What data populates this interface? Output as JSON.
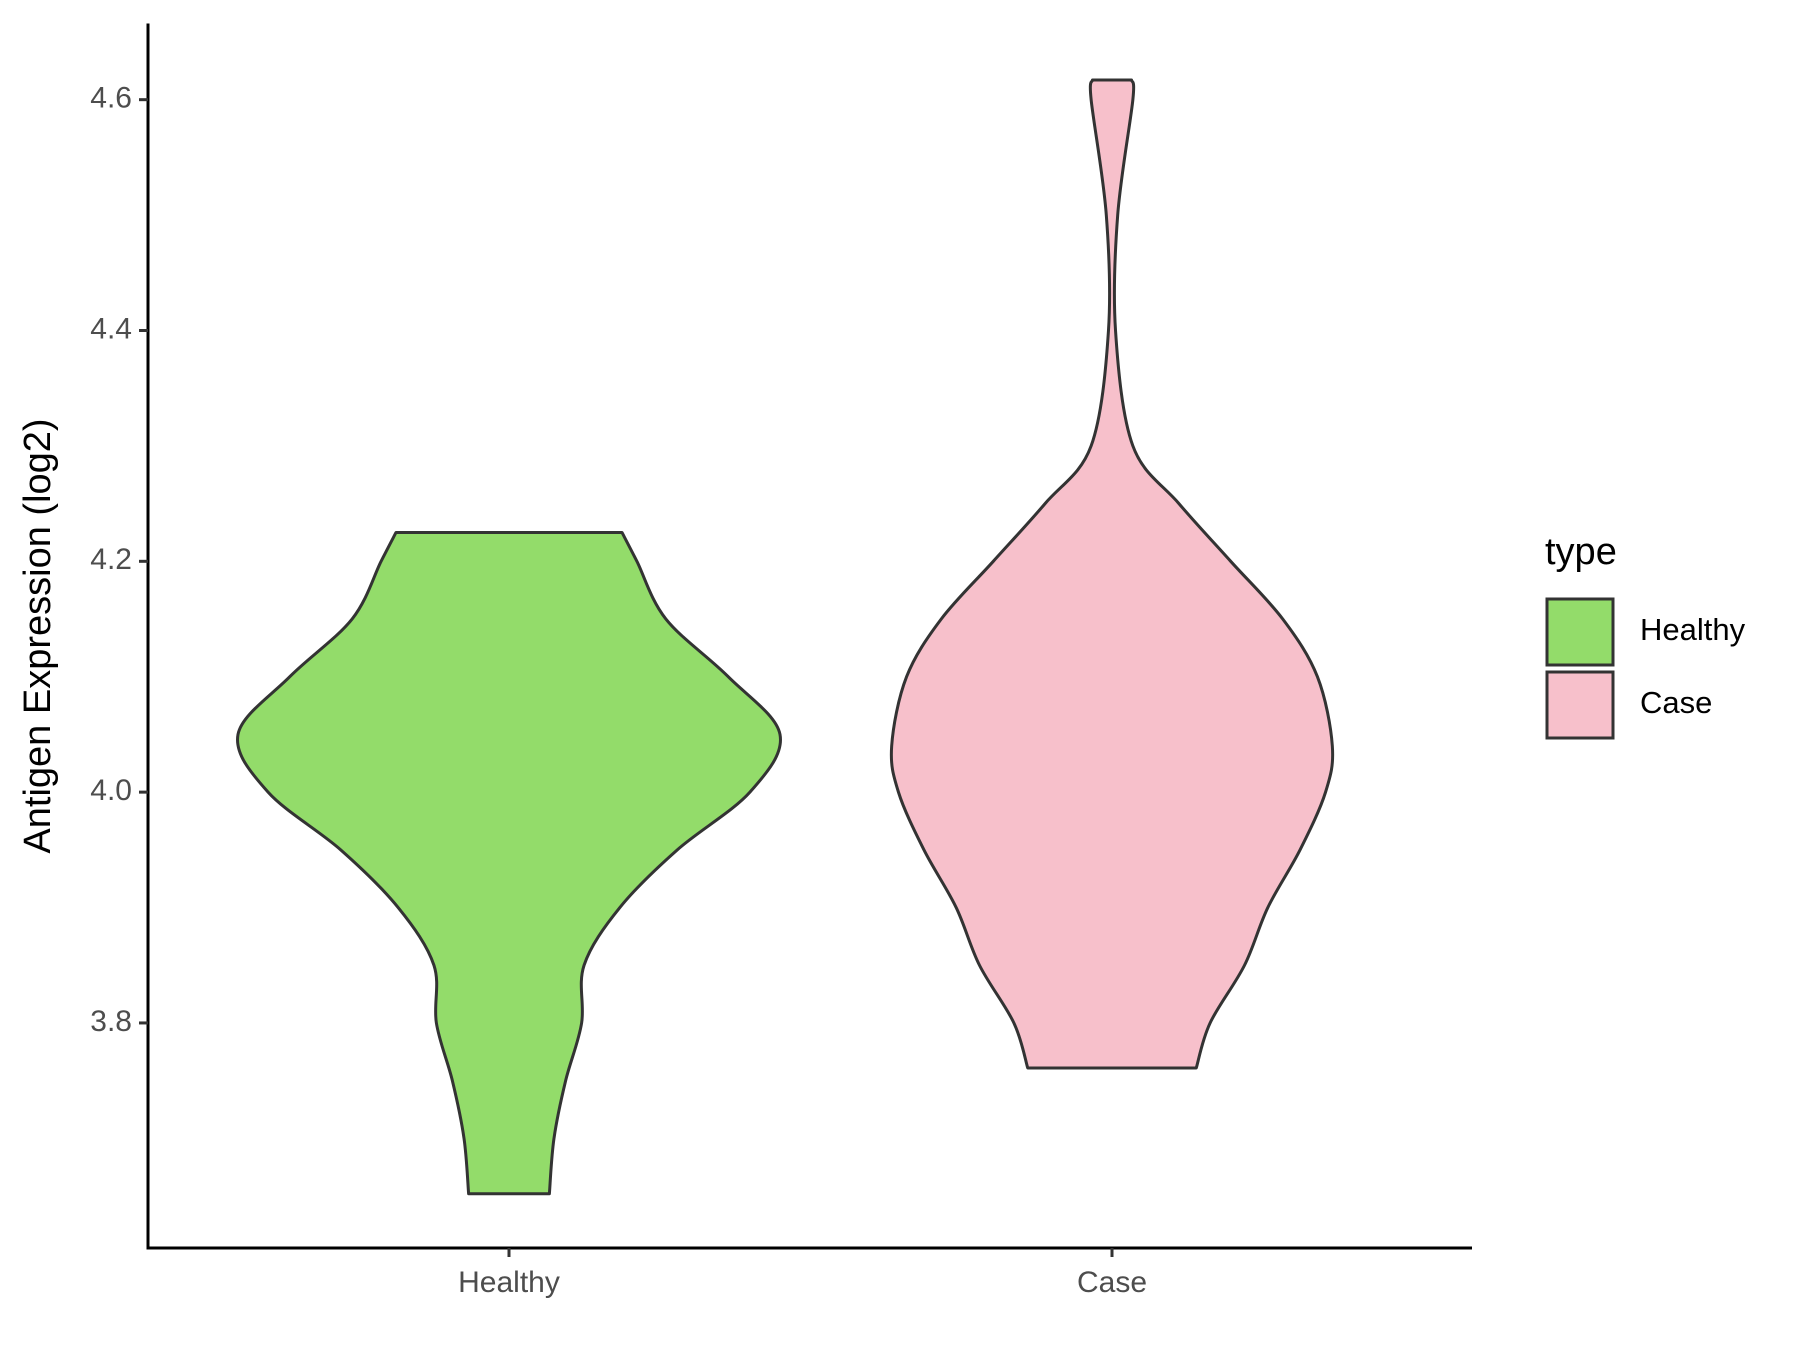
{
  "chart_data": {
    "type": "violin",
    "y_label": "Antigen Expression (log2)",
    "categories": [
      "Healthy",
      "Case"
    ],
    "legend_title": "type",
    "legend_position": "right",
    "ylim": [
      3.605,
      4.666
    ],
    "yticks": [
      3.8,
      {
        "value": 4,
        "label": "4.0"
      },
      4.2,
      4.4,
      4.6
    ],
    "series": [
      {
        "name": "Healthy",
        "color": "#93dc6a",
        "y": [
          4.225,
          4.2,
          4.15,
          4.1,
          4.05,
          4.0,
          3.95,
          3.9,
          3.85,
          3.8,
          3.75,
          3.7,
          3.652
        ],
        "density": [
          0.417,
          0.472,
          0.579,
          0.809,
          1,
          0.889,
          0.621,
          0.409,
          0.277,
          0.268,
          0.209,
          0.166,
          0.149
        ]
      },
      {
        "name": "Case",
        "color": "#f7c0cb",
        "y": [
          4.617,
          4.6,
          4.5,
          4.4,
          4.3,
          4.25,
          4.2,
          4.15,
          4.1,
          4.04,
          4.0,
          3.95,
          3.9,
          3.85,
          3.8,
          3.761
        ],
        "density": [
          0.072,
          0.077,
          0.021,
          0.013,
          0.077,
          0.247,
          0.438,
          0.63,
          0.758,
          0.813,
          0.788,
          0.694,
          0.575,
          0.489,
          0.362,
          0.311
        ]
      }
    ]
  }
}
